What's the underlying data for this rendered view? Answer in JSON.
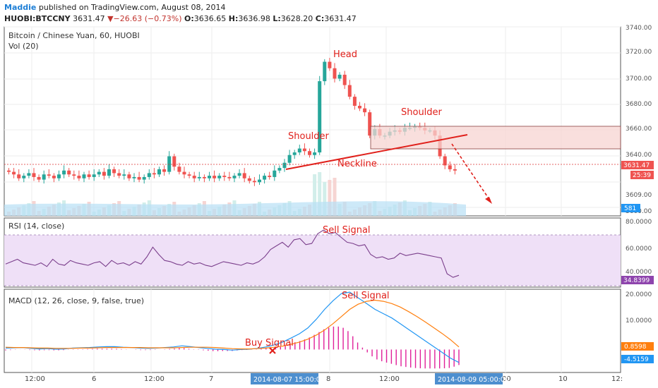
{
  "header": {
    "author": "Maddie",
    "published_text": "published on TradingView.com, August 08, 2014",
    "symbol": "HUOBI:BTCCNY",
    "last": "3631.47",
    "change": "▼−26.63 (−0.73%)",
    "o_label": "O:",
    "o_value": "3636.65",
    "h_label": "H:",
    "h_value": "3636.98",
    "l_label": "L:",
    "l_value": "3628.20",
    "c_label": "C:",
    "c_value": "3631.47"
  },
  "panes": {
    "price_title": "Bitcoin / Chinese Yuan, 60, HUOBI",
    "vol_title": "Vol (20)",
    "rsi_title": "RSI (14, close)",
    "macd_title": "MACD (12, 26, close, 9, false, true)"
  },
  "annotations": {
    "head": "Head",
    "shoulder_left": "Shoulder",
    "shoulder_right": "Shoulder",
    "neckline": "Neckline",
    "rsi_sell": "Sell Signal",
    "macd_sell": "Sell Signal",
    "macd_buy": "Buy Signal"
  },
  "axis": {
    "price_ticks": [
      "3740.00",
      "3720.00",
      "3700.00",
      "3680.00",
      "3660.00",
      "3640.00",
      "3609.00",
      "3600.00"
    ],
    "rsi_ticks": [
      "80.0000",
      "60.0000",
      "40.0000"
    ],
    "macd_ticks": [
      "20.0000",
      "10.0000"
    ],
    "time_ticks": [
      "12:00",
      "6",
      "12:00",
      "7",
      "8",
      "12:00",
      "00",
      "10",
      "12:"
    ],
    "time_highlight_left": "2014-08-07 15:00:00",
    "time_highlight_right": "2014-08-09 05:00:00"
  },
  "badges": {
    "price_last": "3631.47",
    "price_timer": "25:39",
    "volume": "581",
    "rsi": "34.8399",
    "macd": "0.8598",
    "signal": "-4.5159"
  },
  "colors": {
    "up": "#26a69a",
    "down": "#ef5350",
    "annotation": "#e0201b",
    "rsi": "#7b3f8c",
    "macd": "#2196f3",
    "signal": "#ff7f0e",
    "hist": "#e0209a",
    "volume": "#b8e0f5",
    "badge_blue": "#2196f3",
    "badge_red": "#ef5350",
    "badge_purple": "#8e44ad",
    "badge_orange": "#ff7f0e"
  },
  "chart_data": {
    "type": "candlestick",
    "ylim_price": [
      3596,
      3742
    ],
    "ylim_rsi": [
      25,
      82
    ],
    "ylim_macd": [
      -8,
      21
    ],
    "price_seed": [
      3630,
      3628,
      3625,
      3627,
      3629,
      3626,
      3624,
      3628,
      3627,
      3625,
      3628,
      3631,
      3628,
      3627,
      3625,
      3628,
      3626,
      3628,
      3630,
      3627,
      3632,
      3629,
      3627,
      3628,
      3625,
      3626,
      3624,
      3626,
      3629,
      3628,
      3632,
      3630,
      3642,
      3634,
      3630,
      3628,
      3627,
      3625,
      3626,
      3625,
      3627,
      3625,
      3627,
      3626,
      3625,
      3627,
      3629,
      3625,
      3623,
      3622,
      3624,
      3627,
      3626,
      3631,
      3633,
      3637,
      3643,
      3645,
      3648,
      3646,
      3643,
      3645,
      3700,
      3715,
      3710,
      3702,
      3705,
      3697,
      3688,
      3681,
      3679,
      3676,
      3658,
      3663,
      3658,
      3658,
      3661,
      3662,
      3661,
      3664,
      3664,
      3665,
      3664,
      3662,
      3662,
      3658,
      3642,
      3635,
      3632,
      3631
    ],
    "rsi_seed": [
      44,
      46,
      48,
      45,
      44,
      43,
      45,
      42,
      48,
      44,
      43,
      47,
      45,
      44,
      43,
      45,
      46,
      42,
      47,
      44,
      45,
      43,
      46,
      44,
      50,
      58,
      52,
      47,
      46,
      44,
      43,
      46,
      44,
      45,
      43,
      42,
      44,
      46,
      45,
      44,
      43,
      45,
      44,
      46,
      50,
      56,
      59,
      62,
      58,
      64,
      65,
      60,
      61,
      69,
      72,
      69,
      70,
      66,
      62,
      61,
      59,
      60,
      52,
      49,
      50,
      48,
      49,
      53,
      51,
      52,
      53,
      52,
      51,
      50,
      49,
      36,
      33,
      34.8
    ],
    "macd_seed": [
      0.5,
      0.6,
      0.7,
      0.4,
      0.2,
      0.3,
      0.1,
      0.2,
      0.5,
      0.6,
      0.7,
      0.9,
      1.0,
      1.0,
      0.8,
      0.7,
      0.5,
      0.4,
      0.5,
      0.7,
      0.9,
      1.3,
      1.0,
      0.7,
      0.4,
      0.1,
      0.0,
      -0.2,
      0.0,
      0.1,
      0.4,
      0.9,
      1.6,
      2.6,
      4.0,
      5.5,
      7.5,
      10.5,
      14.0,
      17.0,
      19.5,
      20.0,
      18.0,
      16.0,
      14.0,
      12.5,
      11.0,
      9.0,
      7.0,
      5.0,
      3.0,
      1.0,
      -1.0,
      -3.0,
      -4.5
    ],
    "signal_seed": [
      0.8,
      0.7,
      0.7,
      0.6,
      0.5,
      0.5,
      0.4,
      0.4,
      0.4,
      0.5,
      0.5,
      0.6,
      0.7,
      0.7,
      0.7,
      0.7,
      0.7,
      0.6,
      0.6,
      0.6,
      0.6,
      0.7,
      0.8,
      0.8,
      0.8,
      0.7,
      0.5,
      0.3,
      0.2,
      0.2,
      0.3,
      0.5,
      0.8,
      1.2,
      1.8,
      2.6,
      3.6,
      5.0,
      6.8,
      9.0,
      11.5,
      14.0,
      15.8,
      16.8,
      17.2,
      16.8,
      16.0,
      14.8,
      13.2,
      11.5,
      9.6,
      7.6,
      5.6,
      3.4,
      0.9
    ]
  }
}
